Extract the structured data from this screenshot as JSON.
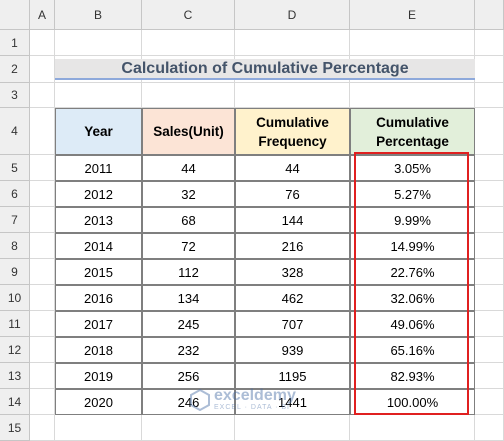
{
  "column_headers": [
    "A",
    "B",
    "C",
    "D",
    "E"
  ],
  "row_numbers": [
    "1",
    "2",
    "3",
    "4",
    "5",
    "6",
    "7",
    "8",
    "9",
    "10",
    "11",
    "12",
    "13",
    "14",
    "15"
  ],
  "title": "Calculation of Cumulative Percentage",
  "table": {
    "header": [
      "Year",
      "Sales(Unit)",
      "Cumulative Frequency",
      "Cumulative Percentage"
    ],
    "rows": [
      [
        "2011",
        "44",
        "44",
        "3.05%"
      ],
      [
        "2012",
        "32",
        "76",
        "5.27%"
      ],
      [
        "2013",
        "68",
        "144",
        "9.99%"
      ],
      [
        "2014",
        "72",
        "216",
        "14.99%"
      ],
      [
        "2015",
        "112",
        "328",
        "22.76%"
      ],
      [
        "2016",
        "134",
        "462",
        "32.06%"
      ],
      [
        "2017",
        "245",
        "707",
        "49.06%"
      ],
      [
        "2018",
        "232",
        "939",
        "65.16%"
      ],
      [
        "2019",
        "256",
        "1195",
        "82.93%"
      ],
      [
        "2020",
        "246",
        "1441",
        "100.00%"
      ]
    ]
  },
  "watermark": {
    "brand": "exceldemy",
    "tagline": "EXCEL · DATA · BI"
  }
}
